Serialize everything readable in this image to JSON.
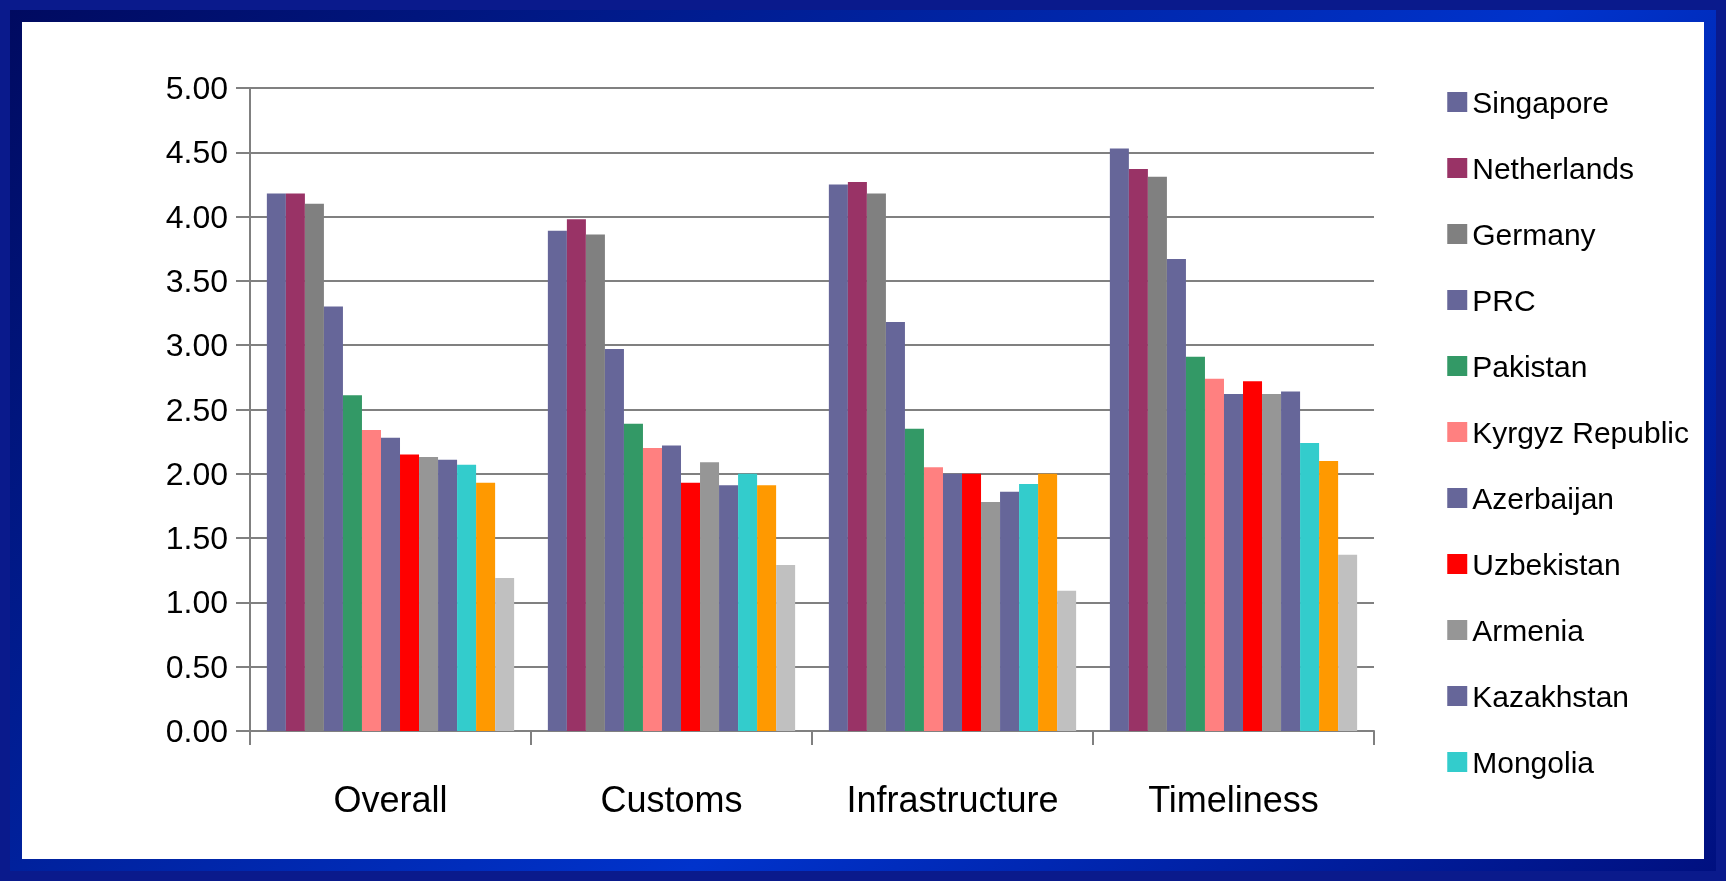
{
  "chart_data": {
    "type": "bar",
    "categories": [
      "Overall",
      "Customs",
      "Infrastructure",
      "Timeliness"
    ],
    "ylim": [
      0,
      5
    ],
    "yticks": [
      {
        "value": 0,
        "label": "0.00"
      },
      {
        "value": 0.5,
        "label": "0.50"
      },
      {
        "value": 1,
        "label": "1.00"
      },
      {
        "value": 1.5,
        "label": "1.50"
      },
      {
        "value": 2,
        "label": "2.00"
      },
      {
        "value": 2.5,
        "label": "2.50"
      },
      {
        "value": 3,
        "label": "3.00"
      },
      {
        "value": 3.5,
        "label": "3.50"
      },
      {
        "value": 4,
        "label": "4.00"
      },
      {
        "value": 4.5,
        "label": "4.50"
      },
      {
        "value": 5,
        "label": "5.00"
      }
    ],
    "grid": "y",
    "legend": "right",
    "series": [
      {
        "name": "Singapore",
        "color": "#666699",
        "values": [
          4.18,
          3.89,
          4.25,
          4.53
        ]
      },
      {
        "name": "Netherlands",
        "color": "#993366",
        "values": [
          4.18,
          3.98,
          4.27,
          4.37
        ]
      },
      {
        "name": "Germany",
        "color": "#808080",
        "values": [
          4.1,
          3.86,
          4.18,
          4.31
        ]
      },
      {
        "name": "PRC",
        "color": "#666699",
        "values": [
          3.3,
          2.97,
          3.18,
          3.67
        ]
      },
      {
        "name": "Pakistan",
        "color": "#339966",
        "values": [
          2.61,
          2.39,
          2.35,
          2.91
        ]
      },
      {
        "name": "Kyrgyz Republic",
        "color": "#ff8080",
        "values": [
          2.34,
          2.2,
          2.05,
          2.74
        ]
      },
      {
        "name": "Azerbaijan",
        "color": "#666699",
        "values": [
          2.28,
          2.22,
          2.0,
          2.62
        ]
      },
      {
        "name": "Uzbekistan",
        "color": "#ff0000",
        "values": [
          2.15,
          1.93,
          2.0,
          2.72
        ]
      },
      {
        "name": "Armenia",
        "color": "#969696",
        "values": [
          2.13,
          2.09,
          1.78,
          2.62
        ]
      },
      {
        "name": "Kazakhstan",
        "color": "#666699",
        "values": [
          2.11,
          1.91,
          1.86,
          2.64
        ]
      },
      {
        "name": "Mongolia",
        "color": "#33cccc",
        "values": [
          2.07,
          2.0,
          1.92,
          2.24
        ]
      },
      {
        "color": "#ff9900",
        "values": [
          1.93,
          1.91,
          2.0,
          2.1
        ]
      },
      {
        "color": "#c0c0c0",
        "values": [
          1.19,
          1.29,
          1.09,
          1.37
        ]
      }
    ]
  }
}
